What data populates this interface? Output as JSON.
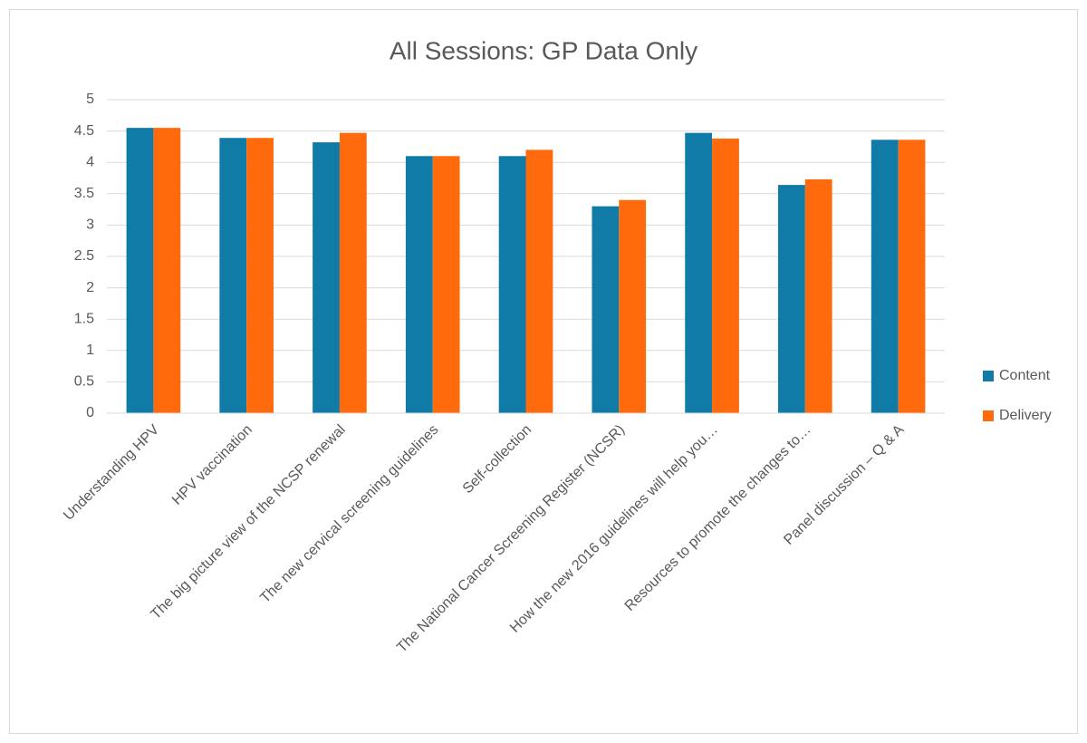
{
  "chart_data": {
    "type": "bar",
    "title": "All Sessions: GP Data Only",
    "categories": [
      "Understanding HPV",
      "HPV vaccination",
      "The big picture view of the NCSP renewal",
      "The new cervical screening guidelines",
      "Self-collection",
      "The National Cancer Screening Register (NCSR)",
      "How the new 2016 guidelines will help you…",
      "Resources to promote the changes to…",
      "Panel discussion – Q & A"
    ],
    "series": [
      {
        "name": "Content",
        "color": "#0f7ba6",
        "values": [
          4.55,
          4.39,
          4.32,
          4.1,
          4.1,
          3.3,
          4.47,
          3.64,
          4.36
        ]
      },
      {
        "name": "Delivery",
        "color": "#ff6a0d",
        "values": [
          4.55,
          4.39,
          4.47,
          4.1,
          4.2,
          3.4,
          4.38,
          3.73,
          4.36
        ]
      }
    ],
    "ylim": [
      0,
      5
    ],
    "yticks": [
      0,
      0.5,
      1,
      1.5,
      2,
      2.5,
      3,
      3.5,
      4,
      4.5,
      5
    ],
    "grid": true,
    "legend": "right"
  }
}
